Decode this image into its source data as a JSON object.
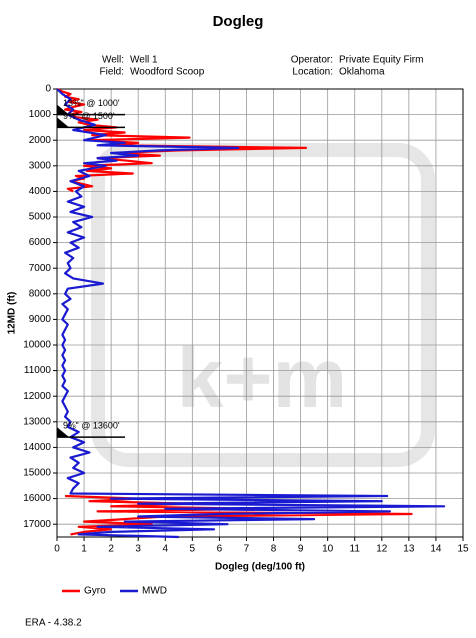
{
  "chart_data": {
    "type": "line",
    "title": "Dogleg",
    "header": {
      "well_label": "Well:",
      "well": "Well 1",
      "field_label": "Field:",
      "field": "Woodford Scoop",
      "operator_label": "Operator:",
      "operator": "Private Equity Firm",
      "location_label": "Location:",
      "location": "Oklahoma"
    },
    "x_label": "Dogleg (deg/100 ft)",
    "y_label": "12MD (ft)",
    "xlim": [
      0,
      15
    ],
    "xticks": [
      0,
      1,
      2,
      3,
      4,
      5,
      6,
      7,
      8,
      9,
      10,
      11,
      12,
      13,
      14,
      15
    ],
    "ylim": [
      0,
      17500
    ],
    "yticks": [
      0,
      1000,
      2000,
      3000,
      4000,
      5000,
      6000,
      7000,
      8000,
      9000,
      10000,
      11000,
      12000,
      13000,
      14000,
      15000,
      16000,
      17000
    ],
    "y_inverted": true,
    "grid": true,
    "series": [
      {
        "name": "Gyro",
        "color": "#ff0000",
        "x": [
          0,
          100,
          200,
          300,
          400,
          500,
          600,
          700,
          800,
          900,
          1000,
          1100,
          1200,
          1300,
          1400,
          1500,
          1600,
          1700,
          1800,
          1900,
          2000,
          2100,
          2200,
          2300,
          2400,
          2500,
          2600,
          2700,
          2800,
          2900,
          3000,
          3100,
          3200,
          3300,
          3400,
          3500,
          3600,
          3700,
          3800,
          3900,
          4000,
          null,
          15900,
          16000,
          16100,
          16200,
          16300,
          16400,
          16500,
          16600,
          16700,
          16800,
          16900,
          17000,
          17100,
          17200,
          17300,
          17400
        ],
        "values": [
          0,
          0.2,
          0.5,
          0.3,
          0.8,
          0.4,
          1.0,
          0.6,
          0.3,
          0.9,
          0.5,
          0.7,
          1.5,
          0.8,
          1.2,
          2.2,
          1.0,
          2.5,
          1.3,
          4.9,
          1.2,
          3.0,
          2.0,
          9.2,
          4.5,
          2.2,
          3.8,
          1.5,
          2.6,
          3.5,
          1.0,
          2.0,
          1.1,
          2.8,
          0.7,
          1.0,
          0.5,
          0.9,
          1.3,
          0.4,
          0.6,
          null,
          0.3,
          3.0,
          1.2,
          5.0,
          2.0,
          7.5,
          1.5,
          13.1,
          4.0,
          2.5,
          1.0,
          3.5,
          0.8,
          2.0,
          1.0,
          0.5
        ]
      },
      {
        "name": "MWD",
        "color": "#1a1ad0",
        "x": [
          0,
          200,
          400,
          600,
          800,
          1000,
          1200,
          1400,
          1600,
          1800,
          2000,
          2100,
          2200,
          2300,
          2400,
          2500,
          2600,
          2700,
          2800,
          2900,
          3000,
          3200,
          3400,
          3600,
          3800,
          4000,
          4200,
          4400,
          4600,
          4800,
          5000,
          5200,
          5400,
          5600,
          5800,
          6000,
          6200,
          6400,
          6600,
          6800,
          7000,
          7200,
          7400,
          7600,
          7800,
          8000,
          8200,
          8400,
          8600,
          8800,
          9000,
          9200,
          9400,
          9600,
          9800,
          10000,
          10200,
          10400,
          10600,
          10800,
          11000,
          11200,
          11400,
          11600,
          11800,
          12000,
          12200,
          12400,
          12600,
          12800,
          13000,
          13200,
          13400,
          13600,
          13800,
          14000,
          14200,
          14400,
          14600,
          14800,
          15000,
          15200,
          15400,
          15600,
          15800,
          15900,
          16000,
          16100,
          16200,
          16300,
          16400,
          16500,
          16600,
          16700,
          16800,
          16900,
          17000,
          17100,
          17200,
          17300,
          17400,
          17500
        ],
        "values": [
          0,
          0.2,
          0.5,
          0.3,
          0.6,
          0.4,
          0.8,
          1.4,
          0.6,
          1.8,
          1.0,
          2.5,
          1.5,
          6.7,
          3.8,
          2.0,
          3.0,
          1.5,
          2.2,
          1.0,
          1.8,
          0.8,
          1.2,
          0.5,
          1.0,
          0.7,
          0.9,
          0.4,
          1.0,
          0.5,
          1.3,
          0.6,
          0.9,
          0.4,
          1.0,
          0.5,
          0.8,
          0.3,
          0.6,
          0.4,
          0.5,
          0.3,
          0.6,
          1.7,
          0.4,
          0.3,
          0.5,
          0.2,
          0.4,
          0.3,
          0.2,
          0.4,
          0.3,
          0.2,
          0.3,
          0.2,
          0.3,
          0.2,
          0.3,
          0.2,
          0.3,
          0.2,
          0.3,
          0.2,
          0.4,
          0.3,
          0.2,
          0.3,
          0.4,
          0.3,
          0.5,
          0.4,
          0.8,
          0.5,
          1.0,
          0.6,
          1.2,
          0.5,
          0.8,
          0.6,
          1.0,
          0.4,
          0.8,
          0.6,
          0.5,
          12.2,
          2.0,
          12.0,
          3.0,
          14.3,
          4.0,
          12.3,
          6.0,
          3.0,
          9.5,
          2.5,
          6.3,
          1.5,
          5.8,
          2.0,
          0.8,
          4.5
        ]
      }
    ],
    "casings": [
      {
        "label": "13⅜\" @ 1000'",
        "md": 1000
      },
      {
        "label": "9⅝\" @ 1500'",
        "md": 1500
      },
      {
        "label": "9⅝\" @ 13600'",
        "md": 13600
      }
    ],
    "watermark": "k+m",
    "legend": "bottom-left",
    "footer": "ERA - 4.38.2"
  }
}
